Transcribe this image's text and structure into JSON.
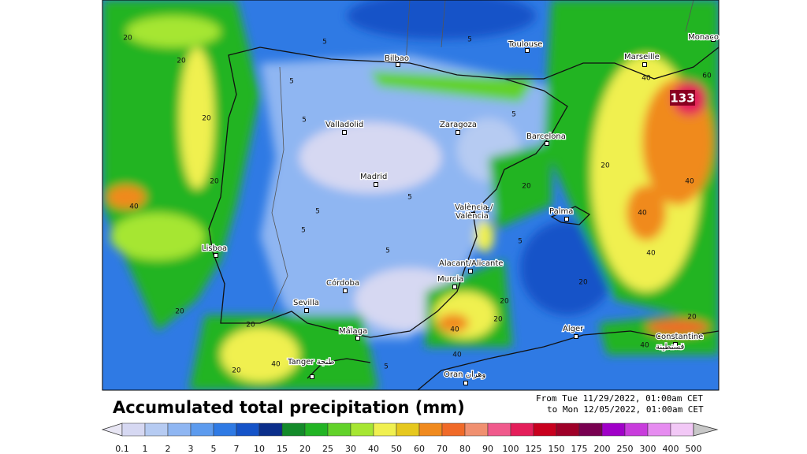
{
  "map": {
    "cities": [
      "Monaco",
      "Toulouse",
      "Marseille",
      "Bilbao",
      "Valladolid",
      "Zaragoza",
      "Barcelona",
      "Madrid",
      "València /",
      "València",
      "Palma",
      "Lisboa",
      "Córdoba",
      "Alacant/Alicante",
      "Murcia",
      "Sevilla",
      "Málaga",
      "Alger",
      "Constantine",
      "قسنطينة",
      "Tanger طنجة",
      "Oran وهران"
    ],
    "contour_labels": [
      "20",
      "20",
      "5",
      "5",
      "5",
      "40",
      "60",
      "20",
      "5",
      "5",
      "20",
      "40",
      "20",
      "5",
      "5",
      "20",
      "40",
      "40",
      "5",
      "5",
      "40",
      "20",
      "20",
      "40",
      "20",
      "5",
      "20",
      "40",
      "40",
      "5",
      "5",
      "20",
      "20",
      "20",
      "40"
    ],
    "max_value": "133"
  },
  "footer": {
    "title": "Accumulated total precipitation (mm)",
    "date_from": "From Tue 11/29/2022, 01:00am CET",
    "date_to": "to Mon 12/05/2022, 01:00am CET"
  },
  "legend": {
    "labels": [
      0.1,
      1,
      2,
      3,
      5,
      7,
      10,
      15,
      20,
      25,
      30,
      40,
      50,
      60,
      70,
      80,
      90,
      100,
      125,
      150,
      175,
      200,
      250,
      300,
      400,
      500
    ],
    "colors": [
      "#e8e6f4",
      "#d6d8f2",
      "#b6cbf2",
      "#8fb6f2",
      "#5d9bee",
      "#2f7ae4",
      "#1553c8",
      "#0b2e8a",
      "#148a2a",
      "#22b424",
      "#62d22a",
      "#a6e632",
      "#f0f050",
      "#e6c81e",
      "#f08a1e",
      "#f06a28",
      "#f09070",
      "#f05a8c",
      "#e41e5a",
      "#c8001e",
      "#9e0028",
      "#780050",
      "#a000c8",
      "#c83cdc",
      "#e68cf0",
      "#f2c8f6",
      "#c8c8c8"
    ]
  }
}
